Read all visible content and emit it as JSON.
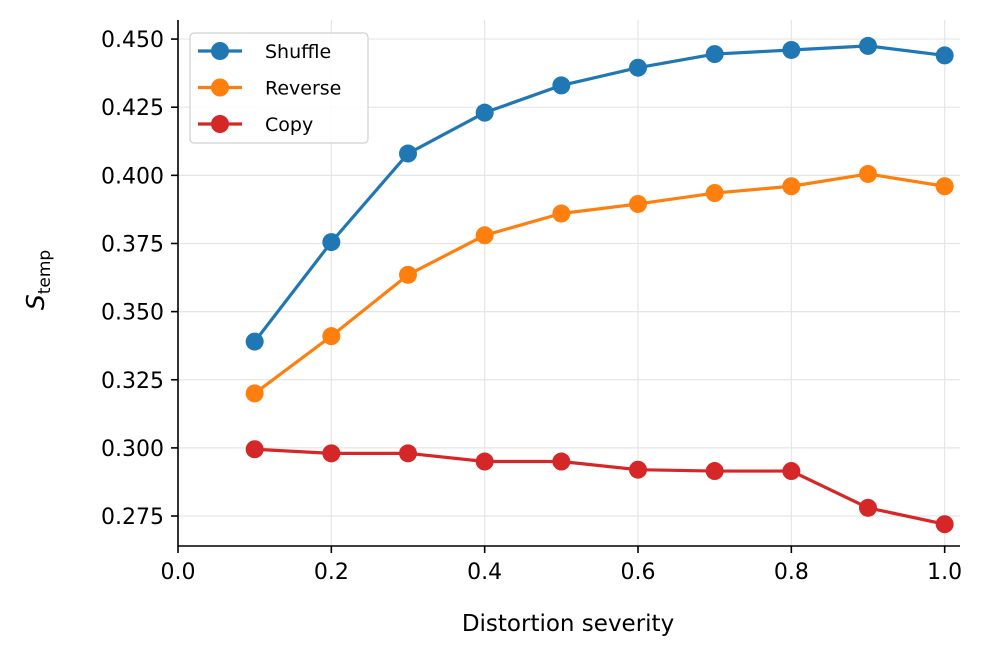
{
  "chart_data": {
    "type": "line",
    "title": "",
    "xlabel": "Distortion severity",
    "ylabel_main": "S",
    "ylabel_sub": "temp",
    "xlim": [
      0.0,
      1.02
    ],
    "ylim": [
      0.264,
      0.457
    ],
    "xticks": [
      0.0,
      0.2,
      0.4,
      0.6,
      0.8,
      1.0
    ],
    "xtick_labels": [
      "0.0",
      "0.2",
      "0.4",
      "0.6",
      "0.8",
      "1.0"
    ],
    "yticks": [
      0.275,
      0.3,
      0.325,
      0.35,
      0.375,
      0.4,
      0.425,
      0.45
    ],
    "ytick_labels": [
      "0.275",
      "0.300",
      "0.325",
      "0.350",
      "0.375",
      "0.400",
      "0.425",
      "0.450"
    ],
    "grid": true,
    "legend_position": "top-left",
    "x": [
      0.1,
      0.2,
      0.3,
      0.4,
      0.5,
      0.6,
      0.7,
      0.8,
      0.9,
      1.0
    ],
    "series": [
      {
        "name": "Shuffle",
        "color": "#1f77b4",
        "values": [
          0.339,
          0.3755,
          0.408,
          0.423,
          0.433,
          0.4395,
          0.4445,
          0.446,
          0.4475,
          0.444
        ]
      },
      {
        "name": "Reverse",
        "color": "#ff7f0e",
        "values": [
          0.32,
          0.341,
          0.3635,
          0.378,
          0.386,
          0.3895,
          0.3935,
          0.396,
          0.4005,
          0.396
        ]
      },
      {
        "name": "Copy",
        "color": "#d62728",
        "values": [
          0.2995,
          0.298,
          0.298,
          0.295,
          0.295,
          0.292,
          0.2915,
          0.2915,
          0.278,
          0.272
        ]
      }
    ]
  }
}
